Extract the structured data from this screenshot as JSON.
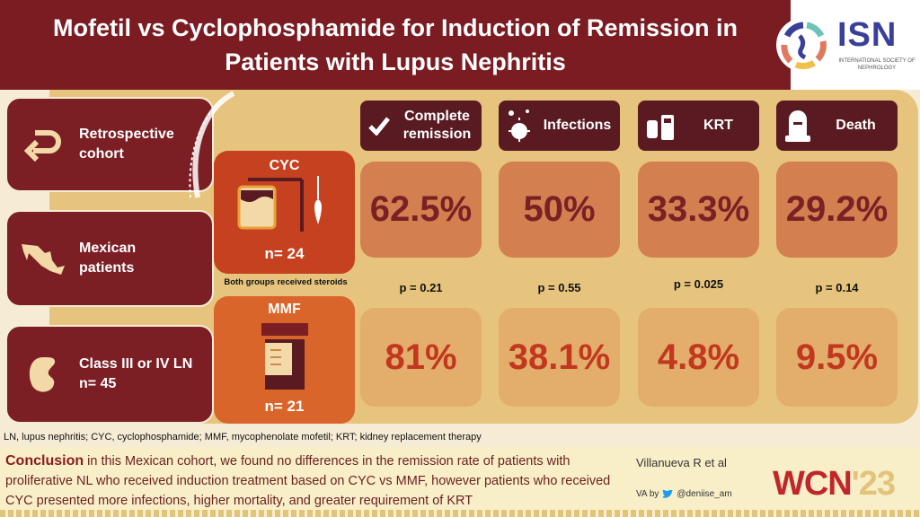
{
  "title": "Mofetil vs Cyclophosphamide for Induction of Remission in Patients with Lupus Nephritis",
  "logo": {
    "name": "ISN",
    "subtitle": "INTERNATIONAL SOCIETY OF NEPHROLOGY"
  },
  "study": [
    {
      "label": "Retrospective cohort",
      "icon": "u-turn-arrow-icon"
    },
    {
      "label": "Mexican patients",
      "icon": "mexico-map-icon"
    },
    {
      "label": "Class III or IV LN",
      "sub": "n= 45",
      "icon": "kidney-icon"
    }
  ],
  "arms": {
    "cyc": {
      "name": "CYC",
      "n": "n= 24",
      "color": "#c6411f"
    },
    "note": "Both groups received steroids",
    "mmf": {
      "name": "MMF",
      "n": "n= 21",
      "color": "#d9652a"
    }
  },
  "outcomes": [
    {
      "label": "Complete remission",
      "icon": "checkmark-icon",
      "cyc": "62.5%",
      "mmf": "81%",
      "p": "p = 0.21"
    },
    {
      "label": "Infections",
      "icon": "virus-icon",
      "cyc": "50%",
      "mmf": "38.1%",
      "p": "p = 0.55"
    },
    {
      "label": "KRT",
      "icon": "dialysis-machine-icon",
      "cyc": "33.3%",
      "mmf": "4.8%",
      "p": "p = 0.025"
    },
    {
      "label": "Death",
      "icon": "tombstone-icon",
      "cyc": "29.2%",
      "mmf": "9.5%",
      "p": "p = 0.14"
    }
  ],
  "footnote": "LN, lupus nephritis; CYC, cyclophosphamide; MMF, mycophenolate mofetil; KRT; kidney replacement therapy",
  "conclusion": {
    "heading": "Conclusion",
    "text": " in this Mexican cohort, we found no differences in the remission rate of patients with proliferative NL who received induction treatment based on CYC vs MMF, however patients who received CYC presented more infections, higher mortality,  and greater requirement of KRT"
  },
  "author": "Villanueva R et al",
  "va": {
    "prefix": "VA by",
    "handle": "@deniise_am"
  },
  "conference": {
    "name": "WCN",
    "year": "'23"
  },
  "colors": {
    "maroon": "#7b1c22",
    "gold": "#e6c47e",
    "header": "#5a1a21",
    "isn_blue": "#3a3f9a"
  }
}
